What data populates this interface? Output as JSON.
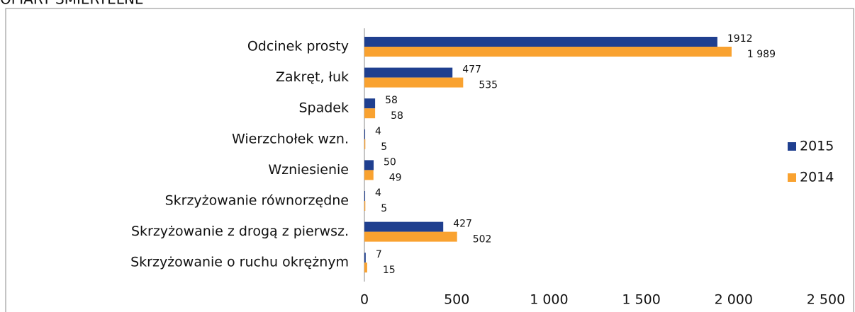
{
  "chart_data": {
    "type": "bar",
    "orientation": "horizontal",
    "title": "OFIARY ŚMIERTELNE",
    "categories": [
      "Odcinek prosty",
      "Zakręt, łuk",
      "Spadek",
      "Wierzchołek wzn.",
      "Wzniesienie",
      "Skrzyżowanie równorzędne",
      "Skrzyżowanie z drogą z pierwsz.",
      "Skrzyżowanie o ruchu okrężnym"
    ],
    "series": [
      {
        "name": "2015",
        "color": "#1f3f8f",
        "values": [
          1912,
          477,
          58,
          4,
          50,
          4,
          427,
          7
        ]
      },
      {
        "name": "2014",
        "color": "#f9a230",
        "values": [
          1989,
          535,
          58,
          5,
          49,
          5,
          502,
          15
        ],
        "value_labels": [
          "1 989",
          "535",
          "58",
          "5",
          "49",
          "5",
          "502",
          "15"
        ]
      }
    ],
    "xlim": [
      0,
      2500
    ],
    "xticks": [
      0,
      500,
      {
        "value": 1000,
        "label": "1 000"
      },
      {
        "value": 1500,
        "label": "1 500"
      },
      {
        "value": 2000,
        "label": "2 000"
      },
      {
        "value": 2500,
        "label": "2 500"
      }
    ],
    "legend": "right"
  }
}
